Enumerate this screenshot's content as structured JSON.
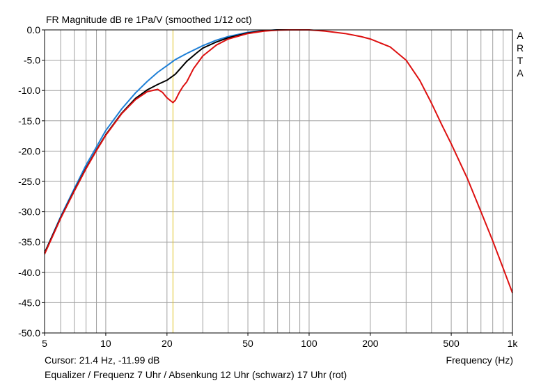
{
  "chart_data": {
    "type": "line",
    "title": "FR Magnitude dB re 1Pa/V (smoothed 1/12 oct)",
    "xlabel": "Frequency (Hz)",
    "ylabel": "",
    "x_scale": "log",
    "xlim": [
      5,
      1000
    ],
    "ylim": [
      -50,
      0
    ],
    "grid": true,
    "x_ticks": [
      "5",
      "10",
      "20",
      "50",
      "100",
      "200",
      "500",
      "1k"
    ],
    "x_tick_values": [
      5,
      10,
      20,
      50,
      100,
      200,
      500,
      1000
    ],
    "y_ticks": [
      "0.0",
      "-5.0",
      "-10.0",
      "-15.0",
      "-20.0",
      "-25.0",
      "-30.0",
      "-35.0",
      "-40.0",
      "-45.0",
      "-50.0"
    ],
    "y_tick_values": [
      0,
      -5,
      -10,
      -15,
      -20,
      -25,
      -30,
      -35,
      -40,
      -45,
      -50
    ],
    "cursor": {
      "x": 21.4,
      "color": "#e0c020"
    },
    "series": [
      {
        "color": "#1e7fd6",
        "x": [
          5,
          6,
          7,
          8,
          9,
          10,
          12,
          14,
          16,
          18,
          20,
          22,
          25,
          30,
          35,
          40,
          50,
          60,
          70,
          80
        ],
        "y": [
          -36.8,
          -30.8,
          -26.2,
          -22.3,
          -19.3,
          -16.6,
          -13.0,
          -10.4,
          -8.5,
          -7.0,
          -5.9,
          -4.9,
          -3.9,
          -2.6,
          -1.7,
          -1.1,
          -0.4,
          -0.1,
          0.0,
          0.0
        ]
      },
      {
        "color": "#000000",
        "x": [
          5,
          6,
          7,
          8,
          9,
          10,
          12,
          14,
          16,
          18,
          20,
          22,
          25,
          28,
          30,
          35,
          40,
          50,
          60,
          70,
          80
        ],
        "y": [
          -36.8,
          -31.0,
          -26.5,
          -22.8,
          -19.8,
          -17.3,
          -13.7,
          -11.3,
          -9.9,
          -9.0,
          -8.3,
          -7.3,
          -5.2,
          -3.8,
          -3.0,
          -2.0,
          -1.3,
          -0.5,
          -0.15,
          0.0,
          0.0
        ]
      },
      {
        "color": "#dd1010",
        "x": [
          5,
          6,
          7,
          8,
          9,
          10,
          12,
          14,
          16,
          18,
          19,
          20,
          21.4,
          22,
          23,
          24,
          25,
          27,
          30,
          35,
          40,
          50,
          60,
          70,
          80,
          100,
          120,
          150,
          180,
          200,
          250,
          300,
          350,
          400,
          450,
          500,
          600,
          700,
          800,
          900,
          1000
        ],
        "y": [
          -37.0,
          -31.1,
          -26.6,
          -22.9,
          -19.9,
          -17.4,
          -13.8,
          -11.5,
          -10.2,
          -9.8,
          -10.3,
          -11.2,
          -12.0,
          -11.6,
          -10.3,
          -9.3,
          -8.6,
          -6.4,
          -4.3,
          -2.5,
          -1.5,
          -0.6,
          -0.2,
          -0.05,
          0.0,
          0.0,
          -0.2,
          -0.6,
          -1.1,
          -1.5,
          -2.8,
          -5.0,
          -8.3,
          -12.1,
          -15.7,
          -18.8,
          -24.5,
          -30.0,
          -34.8,
          -39.3,
          -43.4
        ]
      }
    ]
  },
  "header": {
    "brand_letters": [
      "A",
      "R",
      "T",
      "A"
    ]
  },
  "footer": {
    "cursor_readout": "Cursor: 21.4 Hz, -11.99 dB",
    "description": "Equalizer / Frequenz 7 Uhr / Absenkung 12 Uhr (schwarz) 17 Uhr (rot)"
  },
  "colors": {
    "grid": "#a0a0a0",
    "frame": "#000000",
    "background": "#ffffff"
  }
}
